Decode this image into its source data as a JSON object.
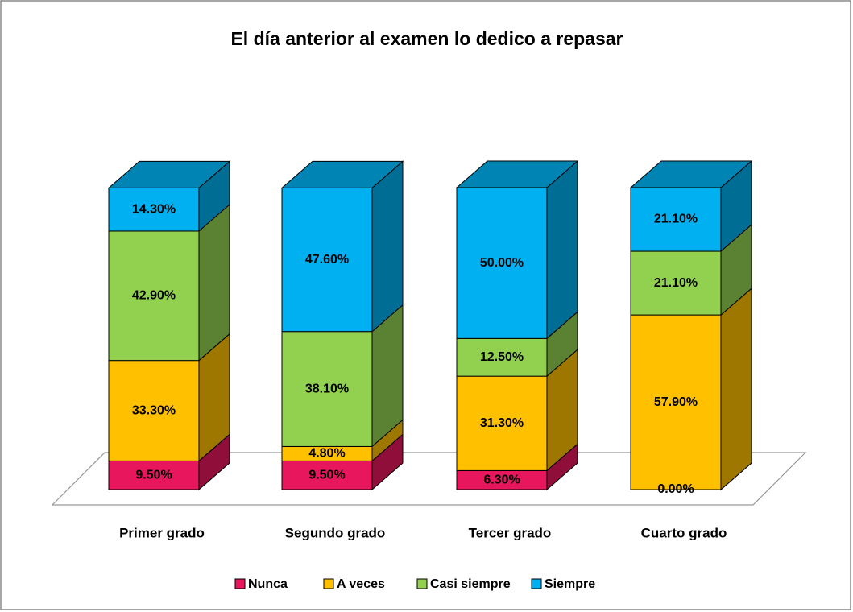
{
  "chart_data": {
    "type": "bar3d_stacked",
    "title": "El día anterior al examen lo dedico a repasar",
    "categories": [
      "Primer grado",
      "Segundo grado",
      "Tercer grado",
      "Cuarto grado"
    ],
    "series": [
      {
        "name": "Nunca",
        "color": "#e8175d",
        "values": [
          9.5,
          9.5,
          6.3,
          0.0
        ],
        "value_labels": [
          "9.50%",
          "9.50%",
          "6.30%",
          "0.00%"
        ]
      },
      {
        "name": "A veces",
        "color": "#ffc000",
        "values": [
          33.3,
          4.8,
          31.3,
          57.9
        ],
        "value_labels": [
          "33.30%",
          "4.80%",
          "31.30%",
          "57.90%"
        ]
      },
      {
        "name": "Casi siempre",
        "color": "#92d050",
        "values": [
          42.9,
          38.1,
          12.5,
          21.1
        ],
        "value_labels": [
          "42.90%",
          "38.10%",
          "12.50%",
          "21.10%"
        ]
      },
      {
        "name": "Siempre",
        "color": "#00b0f0",
        "values": [
          14.3,
          47.6,
          50.0,
          21.1
        ],
        "value_labels": [
          "14.30%",
          "47.60%",
          "50.00%",
          "21.10%"
        ]
      }
    ],
    "legend": "bottom"
  }
}
